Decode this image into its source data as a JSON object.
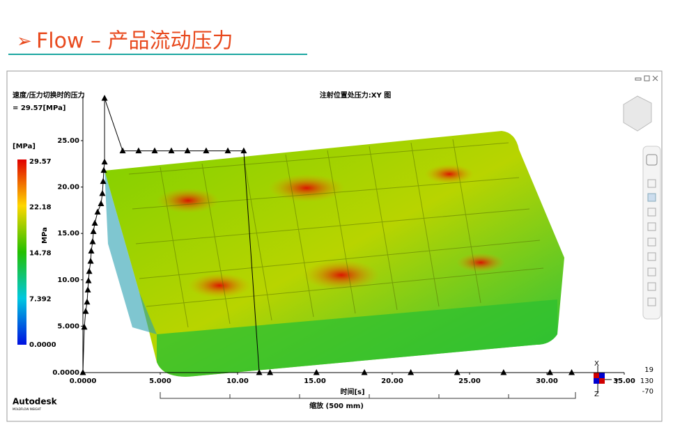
{
  "header": {
    "bullet": "➢",
    "title": "Flow – 产品流动压力"
  },
  "result": {
    "name": "速度/压力切换时的压力",
    "value": "= 29.57[MPa]"
  },
  "colorbar": {
    "unit": "[MPa]",
    "label": "MPa",
    "lim": [
      0,
      29.57
    ],
    "ticks": [
      29.57,
      22.18,
      14.78,
      7.392,
      {
        "value": 0,
        "label": "0.0000"
      }
    ]
  },
  "chart_data": {
    "type": "line",
    "title": "注射位置处压力:XY 图",
    "xlabel": "时间[s]",
    "x": [
      0,
      0.09,
      0.18,
      0.27,
      0.32,
      0.36,
      0.41,
      0.5,
      0.54,
      0.63,
      0.68,
      0.77,
      0.95,
      1.17,
      1.26,
      1.31,
      1.35,
      1.4,
      1.4,
      2.57,
      3.6,
      4.64,
      5.72,
      6.76,
      7.97,
      9.37,
      10.4,
      11.4,
      12.1,
      15.1,
      18.2,
      21.2,
      24.2,
      27.2,
      30.2,
      31.6
    ],
    "series": [
      {
        "color": "#000000",
        "values": [
          0,
          4.9,
          6.6,
          7.6,
          8.9,
          9.9,
          10.9,
          12.0,
          13.1,
          14.1,
          15.2,
          16.1,
          17.3,
          18.2,
          19.3,
          20.6,
          21.8,
          22.7,
          29.57,
          23.9,
          23.9,
          23.9,
          23.9,
          23.9,
          23.9,
          23.9,
          23.9,
          0,
          0,
          0,
          0,
          0,
          0,
          0,
          0,
          0
        ]
      }
    ],
    "xlim": [
      0,
      35
    ],
    "ylim": [
      0,
      29.8
    ],
    "xticks": [
      {
        "value": 0,
        "label": "0.0000"
      },
      {
        "value": 5,
        "label": "5.000"
      },
      {
        "value": 10,
        "label": "10.00"
      },
      {
        "value": 15,
        "label": "15.00"
      },
      {
        "value": 20,
        "label": "20.00"
      },
      {
        "value": 25,
        "label": "25.00"
      },
      {
        "value": 30,
        "label": "30.00"
      },
      {
        "value": 35,
        "label": "35.00"
      }
    ],
    "yticks": [
      {
        "value": 0,
        "label": "0.0000"
      },
      {
        "value": 5,
        "label": "5.000"
      },
      {
        "value": 10,
        "label": "10.00"
      },
      {
        "value": 15,
        "label": "15.00"
      },
      {
        "value": 20,
        "label": "20.00"
      },
      {
        "value": 25,
        "label": "25.00"
      }
    ]
  },
  "view": {
    "scale": "缩放 (500 mm)",
    "axes": [
      "X",
      "Y",
      "Z"
    ],
    "coords": [
      "19",
      "130",
      "-70"
    ]
  },
  "brand": {
    "name": "Autodesk",
    "product": "MOLDFLOW INSIGHT"
  }
}
